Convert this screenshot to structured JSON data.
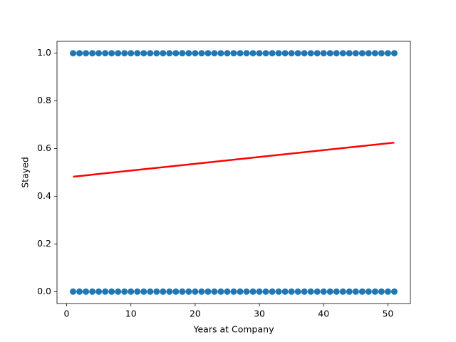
{
  "chart_data": {
    "type": "scatter",
    "xlabel": "Years at Company",
    "ylabel": "Stayed",
    "xlim": [
      -1.5,
      53.5
    ],
    "ylim": [
      -0.05,
      1.05
    ],
    "xticks": [
      0,
      10,
      20,
      30,
      40,
      50
    ],
    "yticks": [
      {
        "value": 0,
        "label": "0.0"
      },
      0.2,
      0.4,
      0.6,
      0.8,
      {
        "value": 1,
        "label": "1.0"
      }
    ],
    "series": [
      {
        "type": "scatter",
        "color": "#1f77b4",
        "x": [
          1,
          2,
          3,
          4,
          5,
          6,
          7,
          8,
          9,
          10,
          11,
          12,
          13,
          14,
          15,
          16,
          17,
          18,
          19,
          20,
          21,
          22,
          23,
          24,
          25,
          26,
          27,
          28,
          29,
          30,
          31,
          32,
          33,
          34,
          35,
          36,
          37,
          38,
          39,
          40,
          41,
          42,
          43,
          44,
          45,
          46,
          47,
          48,
          49,
          50,
          51,
          1,
          2,
          3,
          4,
          5,
          6,
          7,
          8,
          9,
          10,
          11,
          12,
          13,
          14,
          15,
          16,
          17,
          18,
          19,
          20,
          21,
          22,
          23,
          24,
          25,
          26,
          27,
          28,
          29,
          30,
          31,
          32,
          33,
          34,
          35,
          36,
          37,
          38,
          39,
          40,
          41,
          42,
          43,
          44,
          45,
          46,
          47,
          48,
          49,
          50,
          51
        ],
        "values": [
          1,
          1,
          1,
          1,
          1,
          1,
          1,
          1,
          1,
          1,
          1,
          1,
          1,
          1,
          1,
          1,
          1,
          1,
          1,
          1,
          1,
          1,
          1,
          1,
          1,
          1,
          1,
          1,
          1,
          1,
          1,
          1,
          1,
          1,
          1,
          1,
          1,
          1,
          1,
          1,
          1,
          1,
          1,
          1,
          1,
          1,
          1,
          1,
          1,
          1,
          1,
          0,
          0,
          0,
          0,
          0,
          0,
          0,
          0,
          0,
          0,
          0,
          0,
          0,
          0,
          0,
          0,
          0,
          0,
          0,
          0,
          0,
          0,
          0,
          0,
          0,
          0,
          0,
          0,
          0,
          0,
          0,
          0,
          0,
          0,
          0,
          0,
          0,
          0,
          0,
          0,
          0,
          0,
          0,
          0,
          0,
          0,
          0,
          0,
          0,
          0,
          0
        ]
      },
      {
        "type": "line",
        "color": "#ff0000",
        "x": [
          1,
          51
        ],
        "values": [
          0.482,
          0.625
        ]
      }
    ]
  }
}
